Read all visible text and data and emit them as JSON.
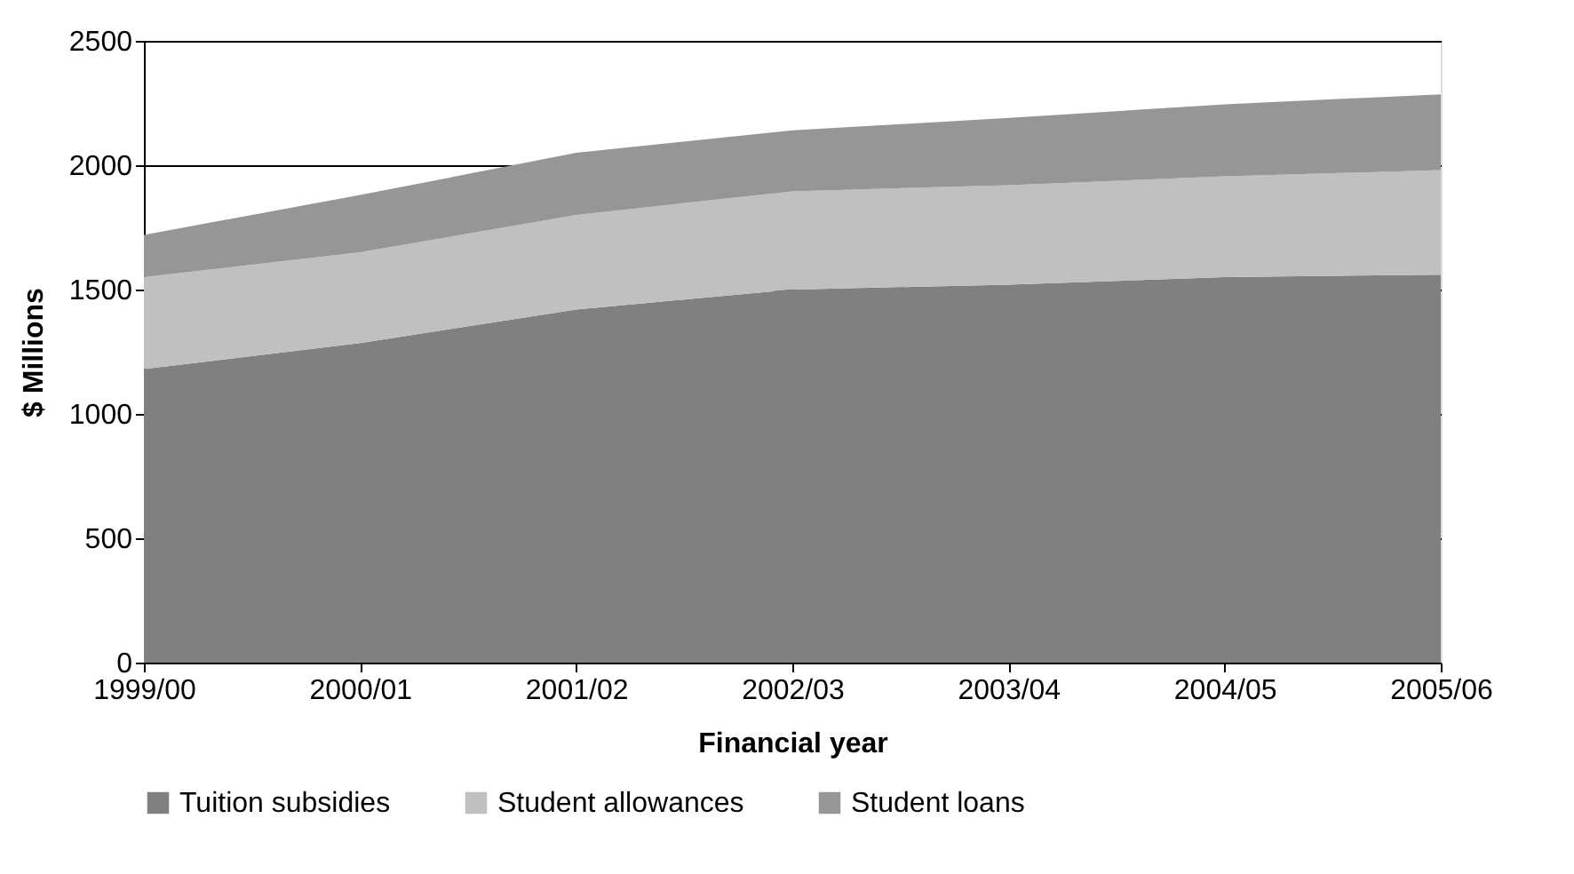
{
  "chart_data": {
    "type": "area",
    "stacked": true,
    "xlabel": "Financial year",
    "ylabel": "$ Millions",
    "categories": [
      "1999/00",
      "2000/01",
      "2001/02",
      "2002/03",
      "2003/04",
      "2004/05",
      "2005/06"
    ],
    "series": [
      {
        "name": "Tuition subsidies",
        "color": "#808080",
        "values": [
          1180,
          1285,
          1420,
          1500,
          1520,
          1550,
          1560
        ]
      },
      {
        "name": "Student allowances",
        "color": "#c0c0c0",
        "values": [
          370,
          365,
          380,
          395,
          400,
          405,
          420
        ]
      },
      {
        "name": "Student loans",
        "color": "#969696",
        "values": [
          170,
          230,
          250,
          245,
          270,
          290,
          305
        ]
      }
    ],
    "ylim": [
      0,
      2500
    ],
    "yticks": [
      0,
      500,
      1000,
      1500,
      2000,
      2500
    ],
    "grid": "y",
    "legend": "bottom"
  }
}
